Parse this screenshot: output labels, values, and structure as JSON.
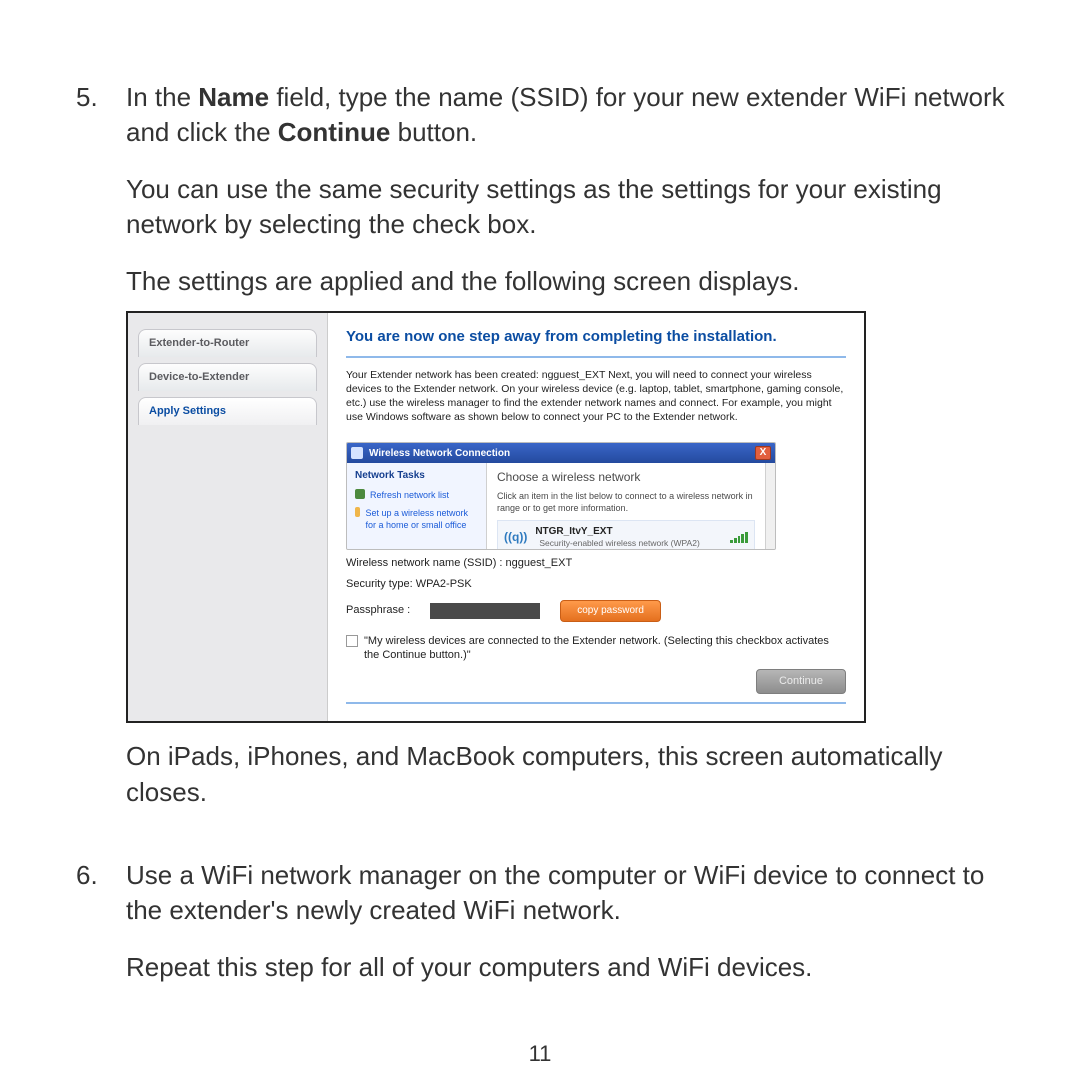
{
  "pageNumber": "11",
  "steps": {
    "s5": {
      "num": "5.",
      "p1_a": "In the ",
      "p1_b": "Name",
      "p1_c": " field, type the name (SSID) for your new extender WiFi network and click the ",
      "p1_d": "Continue",
      "p1_e": " button.",
      "p2": "You can use the same security settings as the settings for your existing network by selecting the check box.",
      "p3": "The settings are applied and the following screen displays.",
      "p4": "On iPads, iPhones, and MacBook computers, this screen automatically closes."
    },
    "s6": {
      "num": "6.",
      "p1": "Use a WiFi network manager on the computer or WiFi device to connect to the extender's newly created WiFi network.",
      "p2": "Repeat this step for all of your computers and WiFi devices."
    }
  },
  "figure": {
    "nav": {
      "t1": "Extender-to-Router",
      "t2": "Device-to-Extender",
      "t3": "Apply Settings"
    },
    "headline": "You are now one step away from completing the installation.",
    "blurb": "Your Extender network has been created: ngguest_EXT Next, you will need to connect your wireless devices to the Extender network. On your wireless device (e.g. laptop, tablet, smartphone, gaming console, etc.) use the wireless manager to find the extender network names and connect. For example, you might use Windows software as shown below to connect your PC to the Extender network.",
    "win": {
      "title": "Wireless Network Connection",
      "close": "X",
      "tasksTitle": "Network Tasks",
      "task1": "Refresh network list",
      "task2": "Set up a wireless network for a home or small office",
      "choose": "Choose a wireless network",
      "pick": "Click an item in the list below to connect to a wireless network in range or to get more information.",
      "netName": "NTGR_ItvY_EXT",
      "netSub": "Security-enabled wireless network (WPA2)",
      "antenna": "((q))"
    },
    "ssid": "Wireless network name (SSID) : ngguest_EXT",
    "sectype": "Security type: WPA2-PSK",
    "passLabel": "Passphrase :",
    "copy": "copy password",
    "checkbox": "\"My wireless devices are connected to the Extender network. (Selecting this checkbox activates the Continue button.)\"",
    "continue": "Continue"
  },
  "colors": {
    "link_blue": "#0b4da2",
    "rule_blue": "#8fb9ea",
    "orange_btn_top": "#ff9a4a",
    "orange_btn_bot": "#e4701f",
    "grey_btn_top": "#b6b6b6",
    "grey_btn_bot": "#8d8d8d"
  }
}
